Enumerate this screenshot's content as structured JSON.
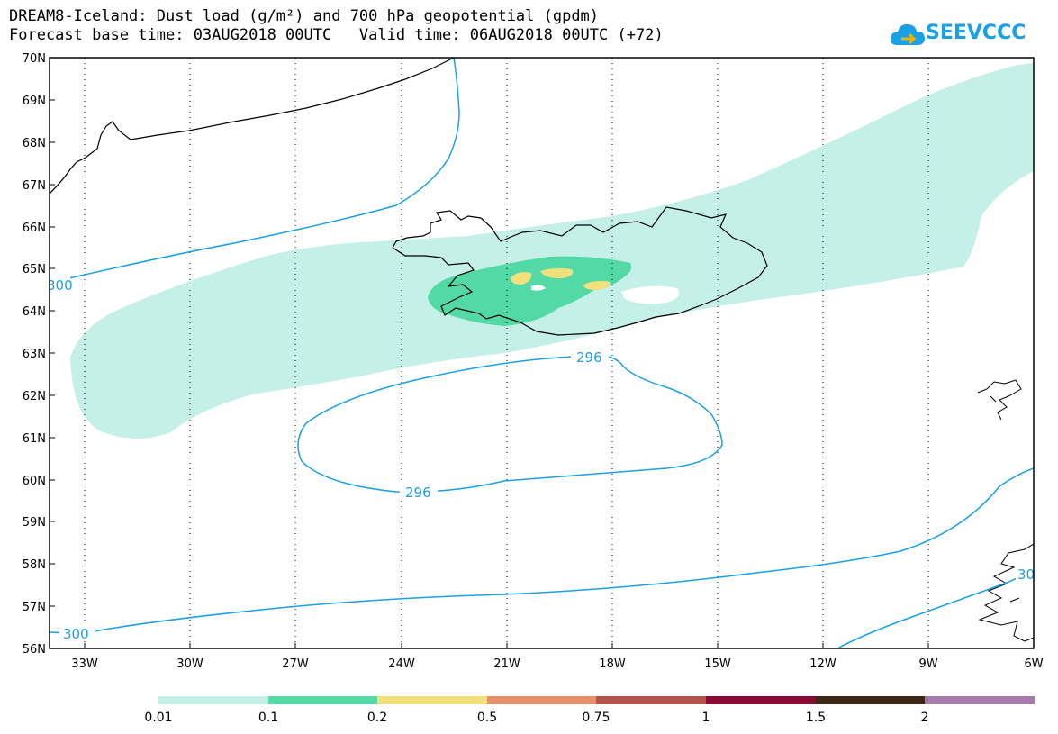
{
  "title": {
    "line1": "DREAM8-Iceland: Dust load (g/m²) and 700 hPa geopotential (gpdm)",
    "line2": "Forecast base time: 03AUG2018 00UTC   Valid time: 06AUG2018 00UTC (+72)"
  },
  "logo": {
    "text": "SEEVCCC",
    "icon": "cloud-arrow-icon",
    "color": "#1aa0e6"
  },
  "map": {
    "lat_labels": [
      "70N",
      "69N",
      "68N",
      "67N",
      "66N",
      "65N",
      "64N",
      "63N",
      "62N",
      "61N",
      "60N",
      "59N",
      "58N",
      "57N",
      "56N"
    ],
    "lon_labels": [
      "33W",
      "30W",
      "27W",
      "24W",
      "21W",
      "18W",
      "15W",
      "12W",
      "9W",
      "6W"
    ],
    "contour_labels": [
      "300",
      "296",
      "296",
      "300",
      "30"
    ],
    "colors": {
      "dust_0_01": "#c5f0e8",
      "dust_0_1": "#52d9a6",
      "dust_0_2": "#f2e07a",
      "contour": "#1aa0e6",
      "coastline": "#000000"
    }
  },
  "colorbar": {
    "labels": [
      "0.01",
      "0.1",
      "0.2",
      "0.5",
      "0.75",
      "1",
      "1.5",
      "2"
    ],
    "colors": [
      "#c5f0e8",
      "#52d9a6",
      "#f2e07a",
      "#e8906b",
      "#b55249",
      "#8a0a33",
      "#3d2715",
      "#a67aaa"
    ]
  }
}
